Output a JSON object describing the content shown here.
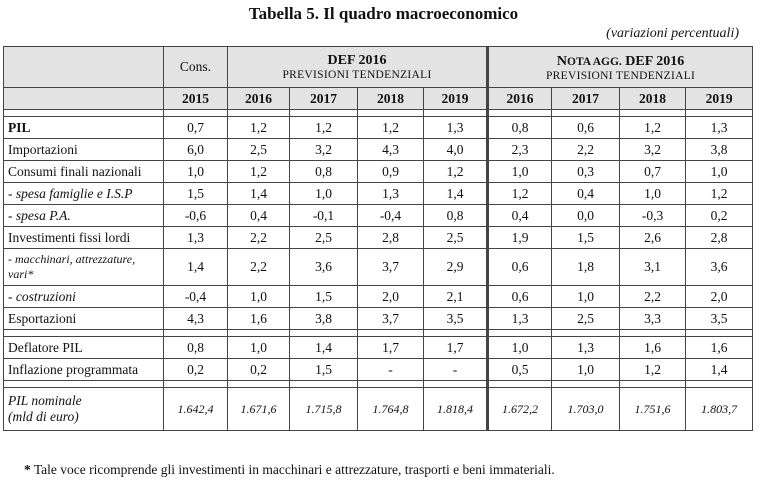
{
  "title": "Tabella 5. Il quadro macroeconomico",
  "subtitle": "(variazioni percentuali)",
  "header": {
    "cons": "Cons.",
    "def_title": "DEF 2016",
    "def_sub": "PREVISIONI TENDENZIALI",
    "nota_N": "N",
    "nota_rest": "OTA AGG.",
    "nota_def": " DEF 2016",
    "nota_sub": "PREVISIONI TENDENZIALI",
    "years": [
      "2015",
      "2016",
      "2017",
      "2018",
      "2019",
      "2016",
      "2017",
      "2018",
      "2019"
    ]
  },
  "rows": [
    {
      "label": "PIL",
      "values": [
        "0,7",
        "1,2",
        "1,2",
        "1,2",
        "1,3",
        "0,8",
        "0,6",
        "1,2",
        "1,3"
      ]
    },
    {
      "label": "Importazioni",
      "values": [
        "6,0",
        "2,5",
        "3,2",
        "4,3",
        "4,0",
        "2,3",
        "2,2",
        "3,2",
        "3,8"
      ]
    },
    {
      "label": "Consumi finali nazionali",
      "values": [
        "1,0",
        "1,2",
        "0,8",
        "0,9",
        "1,2",
        "1,0",
        "0,3",
        "0,7",
        "1,0"
      ]
    },
    {
      "label": "- spesa famiglie e I.S.P",
      "values": [
        "1,5",
        "1,4",
        "1,0",
        "1,3",
        "1,4",
        "1,2",
        "0,4",
        "1,0",
        "1,2"
      ]
    },
    {
      "label": "- spesa P.A.",
      "values": [
        "-0,6",
        "0,4",
        "-0,1",
        "-0,4",
        "0,8",
        "0,4",
        "0,0",
        "-0,3",
        "0,2"
      ]
    },
    {
      "label": "Investimenti fissi lordi",
      "values": [
        "1,3",
        "2,2",
        "2,5",
        "2,8",
        "2,5",
        "1,9",
        "1,5",
        "2,6",
        "2,8"
      ]
    },
    {
      "label_line1": "- macchinari, attrezzature,",
      "label_line2": "vari*",
      "values": [
        "1,4",
        "2,2",
        "3,6",
        "3,7",
        "2,9",
        "0,6",
        "1,8",
        "3,1",
        "3,6"
      ]
    },
    {
      "label": "- costruzioni",
      "values": [
        "-0,4",
        "1,0",
        "1,5",
        "2,0",
        "2,1",
        "0,6",
        "1,0",
        "2,2",
        "2,0"
      ]
    },
    {
      "label": "Esportazioni",
      "values": [
        "4,3",
        "1,6",
        "3,8",
        "3,7",
        "3,5",
        "1,3",
        "2,5",
        "3,3",
        "3,5"
      ]
    },
    {
      "label": "Deflatore PIL",
      "values": [
        "0,8",
        "1,0",
        "1,4",
        "1,7",
        "1,7",
        "1,0",
        "1,3",
        "1,6",
        "1,6"
      ]
    },
    {
      "label": "Inflazione programmata",
      "values": [
        "0,2",
        "0,2",
        "1,5",
        "-",
        "-",
        "0,5",
        "1,0",
        "1,2",
        "1,4"
      ]
    },
    {
      "label_line1": "PIL nominale",
      "label_line2": "(mld di euro)",
      "values": [
        "1.642,4",
        "1.671,6",
        "1.715,8",
        "1.764,8",
        "1.818,4",
        "1.672,2",
        "1.703,0",
        "1.751,6",
        "1.803,7"
      ]
    }
  ],
  "footnote_star": "*",
  "footnote": " Tale voce ricomprende gli investimenti in macchinari e attrezzature, trasporti e beni immateriali."
}
